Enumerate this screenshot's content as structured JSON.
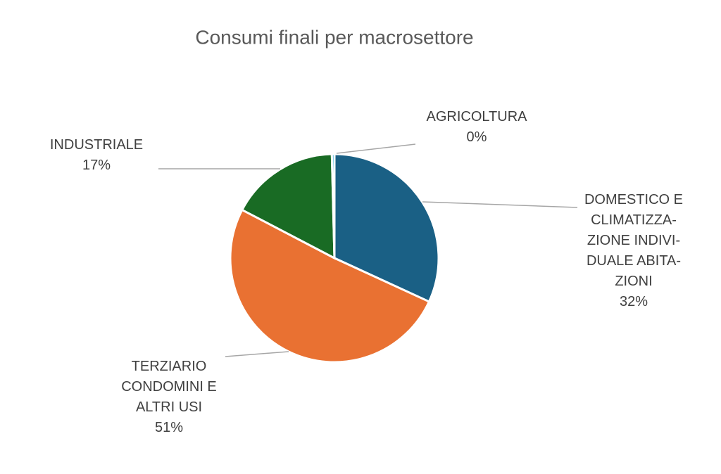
{
  "chart_data": {
    "type": "pie",
    "title": "Consumi finali per macrosettore",
    "categories": [
      "DOMESTICO E\nCLIMATIZZA-\nZIONE INDIVI-\nDUALE ABITA-\nZIONI",
      "TERZIARIO\nCONDOMINI E\nALTRI USI",
      "INDUSTRIALE",
      "AGRICOLTURA"
    ],
    "values": [
      32,
      51,
      17,
      0.4
    ],
    "value_labels": [
      "32%",
      "51%",
      "17%",
      "0%"
    ],
    "colors": [
      "#1a6085",
      "#e97132",
      "#196b24",
      "#0f9ed5"
    ]
  }
}
